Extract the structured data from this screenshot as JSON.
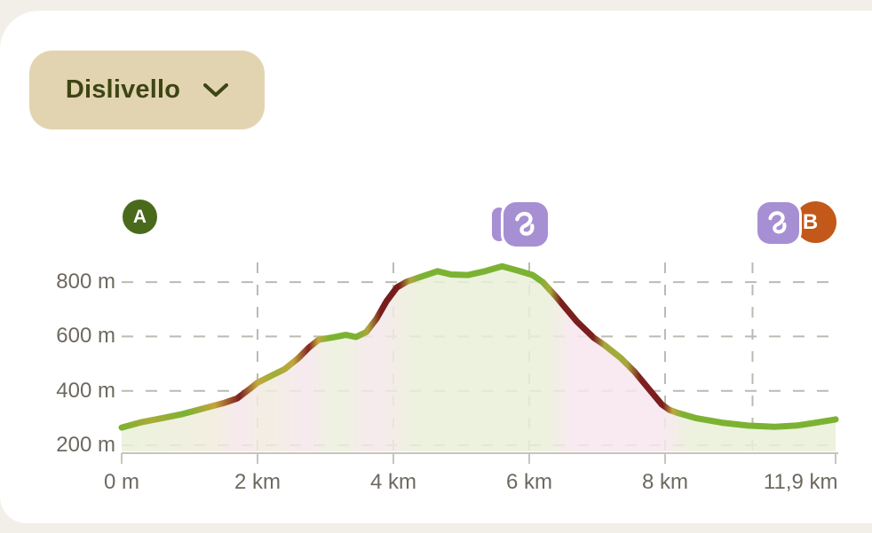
{
  "panel": {
    "dropdown": {
      "label": "Dislivello"
    }
  },
  "markers": {
    "start_label": "A",
    "end_label": "B",
    "waypoint_icon": "waypoint-squiggle"
  },
  "colors": {
    "page_background": "#f2efe9",
    "card_background": "#ffffff",
    "dropdown_background": "#e3d4b1",
    "dropdown_text": "#3d4513",
    "marker_start": "#4a6a1b",
    "marker_end": "#c2591a",
    "waypoint_purple": "#a78fd3",
    "axis_text": "#6e6960",
    "gridline": "#bcbab1",
    "axis_line": "#c6c4bc",
    "slope_flat_green": "#7cb232",
    "slope_steep_red": "#7a1e1e"
  },
  "chart_data": {
    "type": "area",
    "title": "Dislivello",
    "x_unit": "km",
    "y_unit": "m",
    "total_distance_km": 11.9,
    "grid": true,
    "ylim": [
      170,
      900
    ],
    "y_ticks": [
      {
        "m": 800,
        "label": "800 m"
      },
      {
        "m": 600,
        "label": "600 m"
      },
      {
        "m": 400,
        "label": "400 m"
      },
      {
        "m": 200,
        "label": "200 m"
      }
    ],
    "x_ticks": [
      {
        "km": 0,
        "label": "0 m"
      },
      {
        "km": 2,
        "label": "2 km"
      },
      {
        "km": 4,
        "label": "4 km"
      },
      {
        "km": 6,
        "label": "6 km"
      },
      {
        "km": 8,
        "label": "8 km"
      },
      {
        "km": 11.9,
        "label": "11,9 km"
      }
    ],
    "x_gridlines_km": [
      2,
      4,
      6,
      8,
      10
    ],
    "profile_points_km_m": [
      [
        0.0,
        265
      ],
      [
        0.3,
        285
      ],
      [
        0.6,
        300
      ],
      [
        0.9,
        315
      ],
      [
        1.2,
        335
      ],
      [
        1.5,
        355
      ],
      [
        1.7,
        372
      ],
      [
        1.9,
        410
      ],
      [
        2.0,
        430
      ],
      [
        2.2,
        455
      ],
      [
        2.4,
        480
      ],
      [
        2.6,
        520
      ],
      [
        2.75,
        558
      ],
      [
        2.9,
        588
      ],
      [
        3.1,
        596
      ],
      [
        3.3,
        606
      ],
      [
        3.45,
        598
      ],
      [
        3.6,
        616
      ],
      [
        3.75,
        665
      ],
      [
        3.9,
        730
      ],
      [
        4.05,
        780
      ],
      [
        4.2,
        802
      ],
      [
        4.35,
        815
      ],
      [
        4.65,
        840
      ],
      [
        4.85,
        828
      ],
      [
        5.1,
        826
      ],
      [
        5.35,
        840
      ],
      [
        5.6,
        858
      ],
      [
        5.85,
        841
      ],
      [
        6.05,
        826
      ],
      [
        6.2,
        800
      ],
      [
        6.4,
        745
      ],
      [
        6.7,
        655
      ],
      [
        6.95,
        595
      ],
      [
        7.1,
        570
      ],
      [
        7.35,
        520
      ],
      [
        7.55,
        470
      ],
      [
        7.8,
        395
      ],
      [
        7.95,
        350
      ],
      [
        8.1,
        330
      ],
      [
        8.3,
        318
      ],
      [
        8.7,
        300
      ],
      [
        9.3,
        283
      ],
      [
        9.9,
        272
      ],
      [
        10.5,
        268
      ],
      [
        11.0,
        272
      ],
      [
        11.4,
        282
      ],
      [
        11.9,
        295
      ]
    ],
    "slope_color_stops": [
      [
        0.0,
        "#7cb232"
      ],
      [
        0.04,
        "#a9ab38"
      ],
      [
        0.09,
        "#7cb232"
      ],
      [
        0.13,
        "#c4a43c"
      ],
      [
        0.165,
        "#7e2020"
      ],
      [
        0.19,
        "#c2a93f"
      ],
      [
        0.215,
        "#9fae38"
      ],
      [
        0.24,
        "#c0a63c"
      ],
      [
        0.262,
        "#832521"
      ],
      [
        0.275,
        "#bfa83e"
      ],
      [
        0.29,
        "#7cb232"
      ],
      [
        0.33,
        "#7cb232"
      ],
      [
        0.345,
        "#b0a43c"
      ],
      [
        0.363,
        "#771c1c"
      ],
      [
        0.388,
        "#771c1c"
      ],
      [
        0.404,
        "#b0a43c"
      ],
      [
        0.418,
        "#7cb232"
      ],
      [
        0.585,
        "#7cb232"
      ],
      [
        0.6,
        "#a9a83c"
      ],
      [
        0.615,
        "#7a1e1e"
      ],
      [
        0.66,
        "#7a1e1e"
      ],
      [
        0.676,
        "#a8a53c"
      ],
      [
        0.695,
        "#9fae38"
      ],
      [
        0.708,
        "#a8a53c"
      ],
      [
        0.726,
        "#802020"
      ],
      [
        0.758,
        "#7a1e1e"
      ],
      [
        0.772,
        "#bfa83e"
      ],
      [
        0.786,
        "#7cb232"
      ],
      [
        1.0,
        "#7cb232"
      ]
    ],
    "fill_color_stops": [
      [
        0.0,
        "#e9f0d8"
      ],
      [
        0.13,
        "#f0ecdc"
      ],
      [
        0.165,
        "#f6e6ec"
      ],
      [
        0.2,
        "#f0ecde"
      ],
      [
        0.26,
        "#f6e6ec"
      ],
      [
        0.3,
        "#eaf1da"
      ],
      [
        0.355,
        "#f5e6eb"
      ],
      [
        0.42,
        "#e9f0d8"
      ],
      [
        0.595,
        "#e9f0d8"
      ],
      [
        0.63,
        "#f7e6ed"
      ],
      [
        0.76,
        "#f7e6ed"
      ],
      [
        0.8,
        "#e9f0d8"
      ],
      [
        1.0,
        "#e9f0d8"
      ]
    ]
  }
}
